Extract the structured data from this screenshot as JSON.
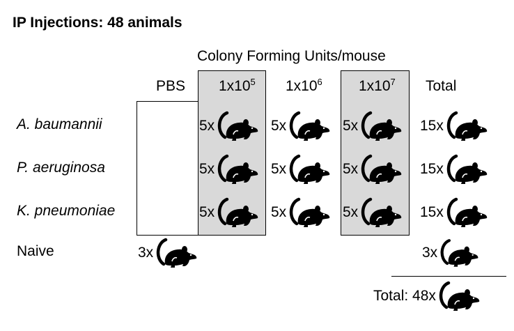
{
  "title": "IP Injections: 48 animals",
  "cfu_header": "Colony Forming Units/mouse",
  "columns": {
    "pbs": "PBS",
    "c1": {
      "base": "1x10",
      "exp": "5"
    },
    "c2": {
      "base": "1x10",
      "exp": "6"
    },
    "c3": {
      "base": "1x10",
      "exp": "7"
    },
    "total": "Total"
  },
  "rows": [
    {
      "label": "A. baumannii",
      "c1": "5x",
      "c2": "5x",
      "c3": "5x",
      "total": "15x"
    },
    {
      "label": "P. aeruginosa",
      "c1": "5x",
      "c2": "5x",
      "c3": "5x",
      "total": "15x"
    },
    {
      "label": "K. pneumoniae",
      "c1": "5x",
      "c2": "5x",
      "c3": "5x",
      "total": "15x"
    }
  ],
  "naive": {
    "label": "Naive",
    "pbs": "3x",
    "total": "3x"
  },
  "grand_total": "Total: 48x",
  "colors": {
    "shading": "#d9d9d9",
    "ink": "#000000"
  },
  "icon": "mouse-icon"
}
